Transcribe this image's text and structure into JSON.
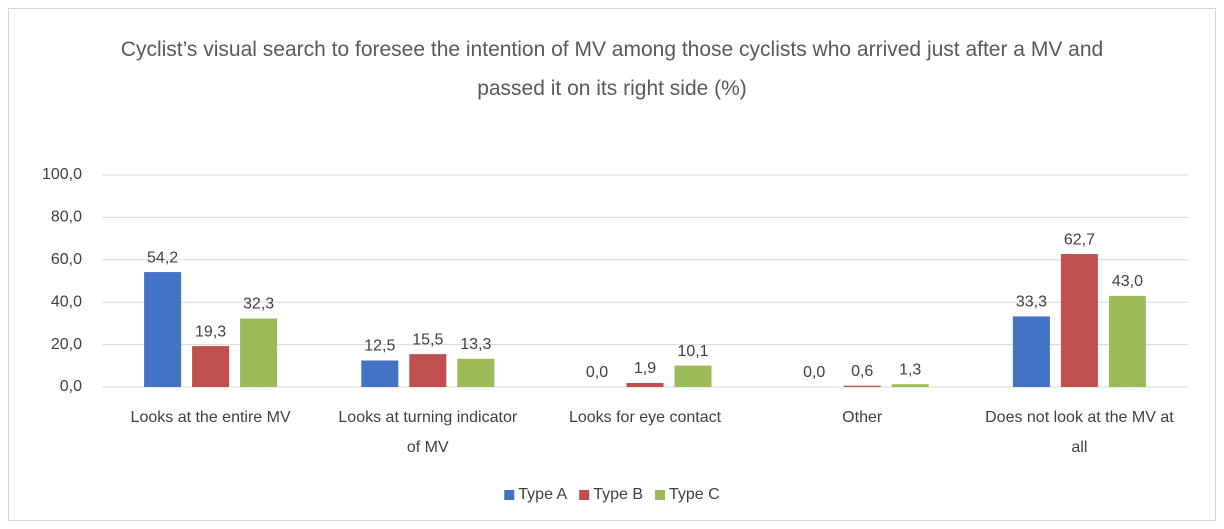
{
  "chart_data": {
    "type": "bar",
    "title": "Cyclist’s visual search to foresee the intention of MV among those cyclists who arrived just after a MV and passed it on its right side (%)",
    "categories": [
      "Looks at the entire MV",
      "Looks at turning indicator of MV",
      "Looks for eye contact",
      "Other",
      "Does not look at the MV at all"
    ],
    "series": [
      {
        "name": "Type A",
        "color": "#4472c4",
        "values": [
          54.2,
          12.5,
          0.0,
          0.0,
          33.3
        ],
        "value_labels": [
          "54,2",
          "12,5",
          "0,0",
          "0,0",
          "33,3"
        ]
      },
      {
        "name": "Type B",
        "color": "#c0504d",
        "values": [
          19.3,
          15.5,
          1.9,
          0.6,
          62.7
        ],
        "value_labels": [
          "19,3",
          "15,5",
          "1,9",
          "0,6",
          "62,7"
        ]
      },
      {
        "name": "Type C",
        "color": "#9bbb59",
        "values": [
          32.3,
          13.3,
          10.1,
          1.3,
          43.0
        ],
        "value_labels": [
          "32,3",
          "13,3",
          "10,1",
          "1,3",
          "43,0"
        ]
      }
    ],
    "ylim": [
      0,
      100
    ],
    "yticks": [
      {
        "value": 0,
        "label": "0,0"
      },
      {
        "value": 20,
        "label": "20,0"
      },
      {
        "value": 40,
        "label": "40,0"
      },
      {
        "value": 60,
        "label": "60,0"
      },
      {
        "value": 80,
        "label": "80,0"
      },
      {
        "value": 100,
        "label": "100,0"
      }
    ],
    "grid": true,
    "legend": "bottom"
  }
}
